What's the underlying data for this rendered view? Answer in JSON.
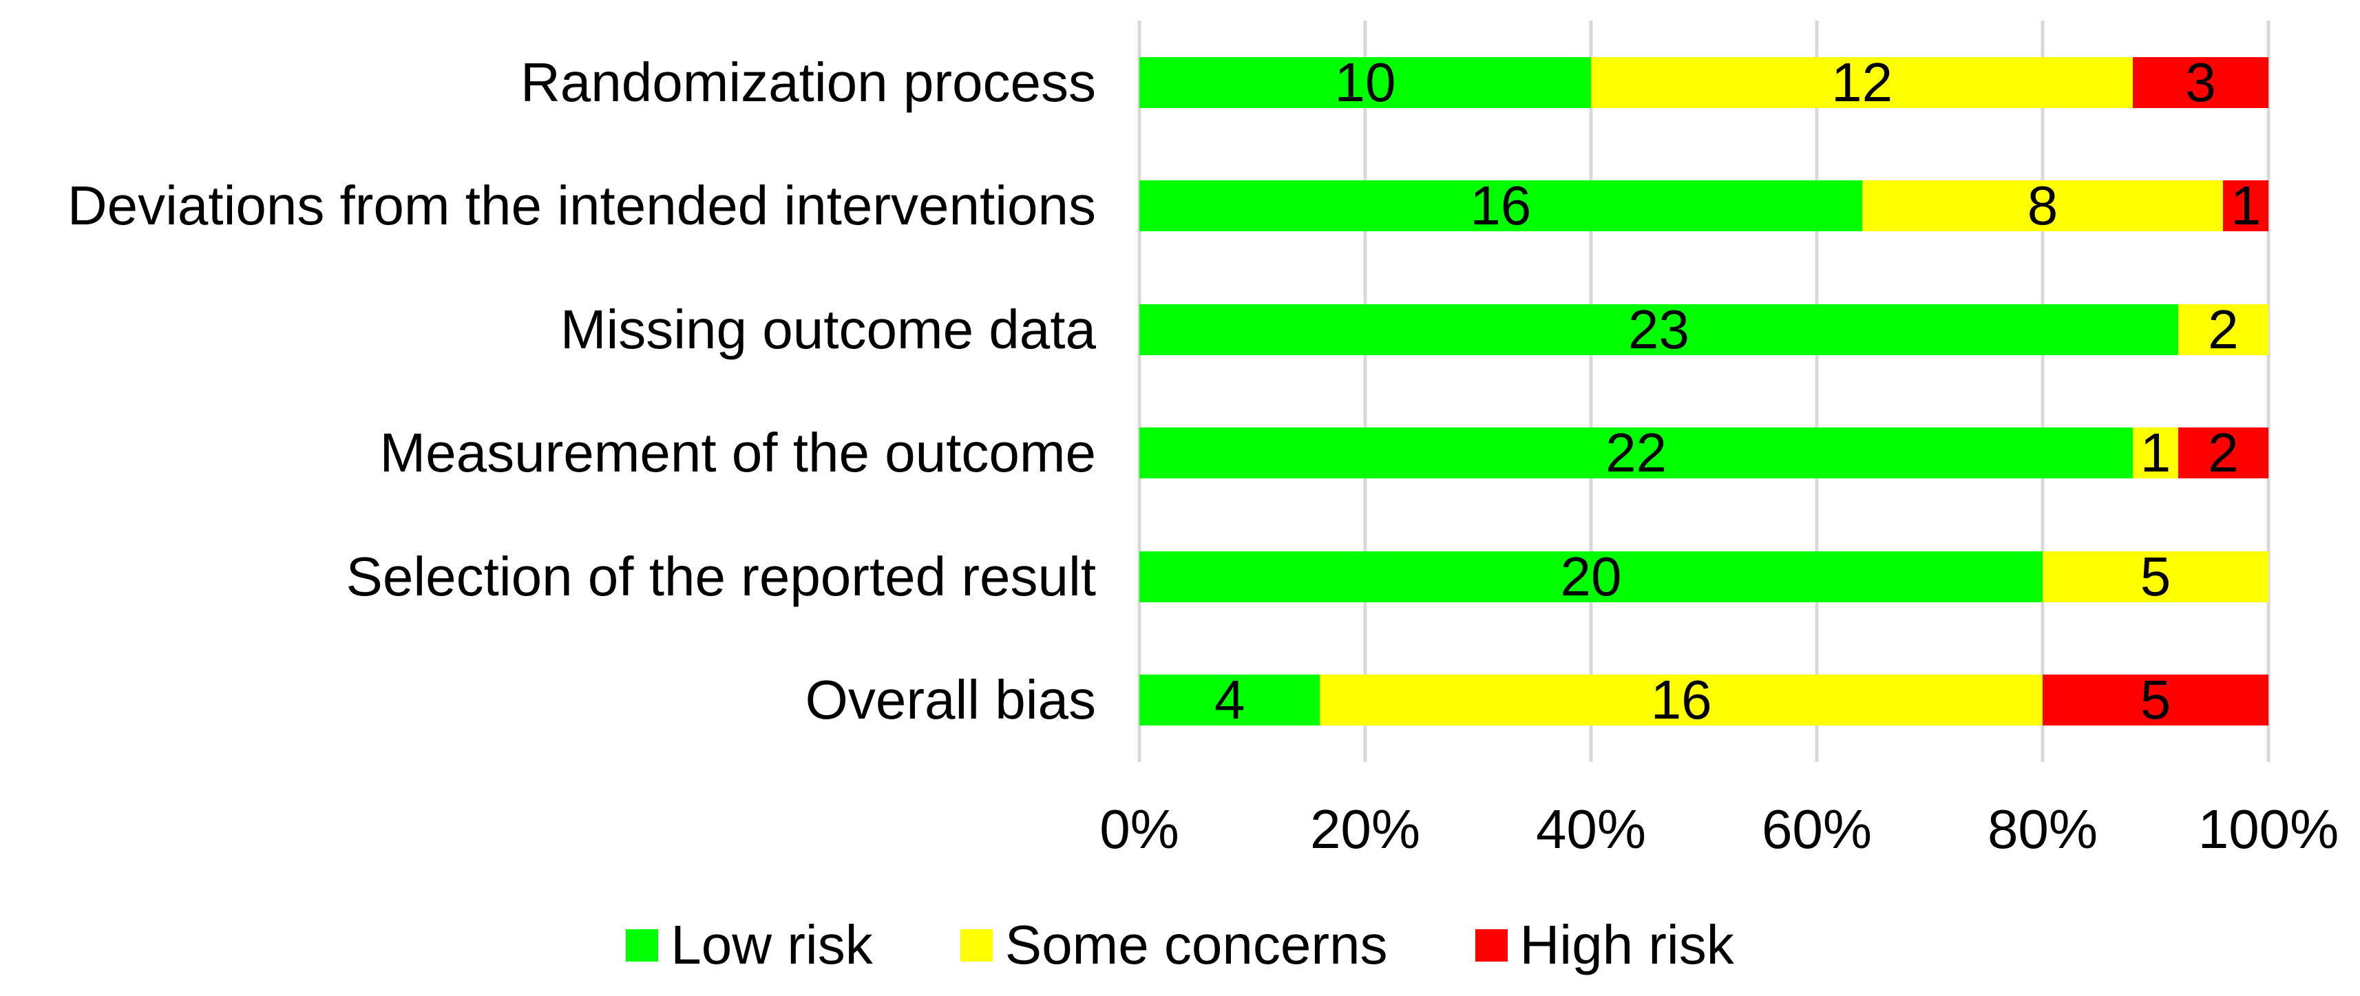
{
  "chart_data": {
    "type": "bar",
    "orientation": "horizontal",
    "stacked": true,
    "title": "",
    "categories": [
      "Randomization process",
      "Deviations from the intended interventions",
      "Missing outcome data",
      "Measurement of the outcome",
      "Selection of the reported result",
      "Overall bias"
    ],
    "series": [
      {
        "name": "Low risk",
        "color": "#00FF00",
        "values": [
          10,
          16,
          23,
          22,
          20,
          4
        ]
      },
      {
        "name": "Some concerns",
        "color": "#FFFF00",
        "values": [
          12,
          8,
          2,
          1,
          5,
          16
        ]
      },
      {
        "name": "High risk",
        "color": "#FF0000",
        "values": [
          3,
          1,
          0,
          2,
          0,
          5
        ]
      }
    ],
    "x_axis": {
      "ticks": [
        "0%",
        "20%",
        "40%",
        "60%",
        "80%",
        "100%"
      ],
      "tick_values": [
        0,
        20,
        40,
        60,
        80,
        100
      ],
      "min": 0,
      "max": 100
    },
    "grid": true,
    "gridline_color": "#D9D9D9",
    "legend_position": "bottom",
    "plot_background": "#FFFFFF"
  }
}
